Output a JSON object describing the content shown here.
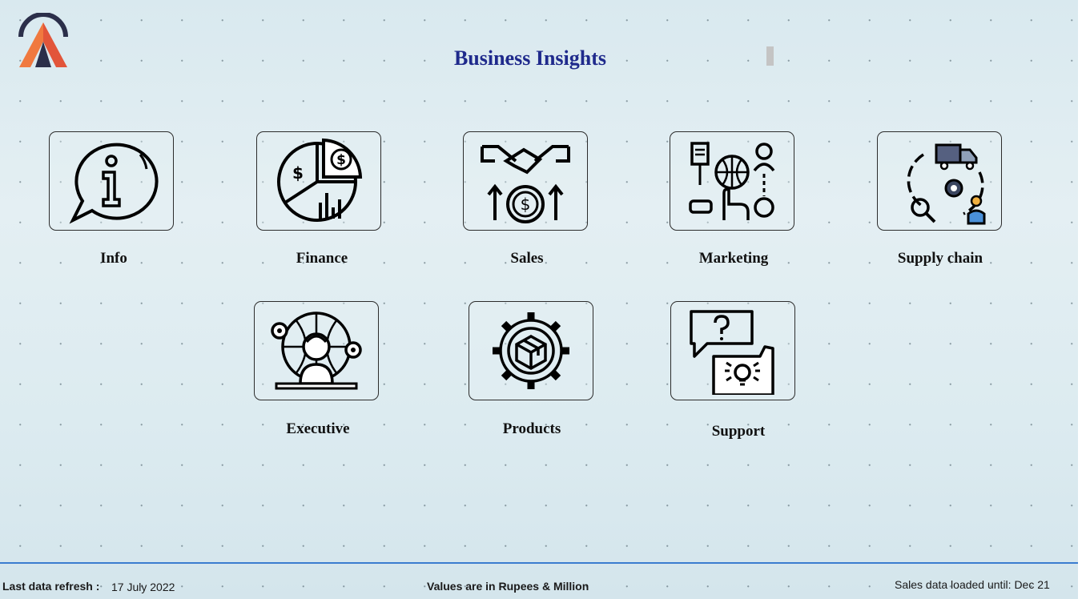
{
  "title": "Business Insights",
  "tiles": [
    {
      "label": "Info",
      "icon": "info-speech-bubble-icon"
    },
    {
      "label": "Finance",
      "icon": "finance-pie-chart-icon"
    },
    {
      "label": "Sales",
      "icon": "handshake-coin-icon"
    },
    {
      "label": "Marketing",
      "icon": "marketing-globe-icon"
    },
    {
      "label": "Supply chain",
      "icon": "supply-chain-truck-icon"
    },
    {
      "label": "Executive",
      "icon": "executive-person-globe-icon"
    },
    {
      "label": "Products",
      "icon": "product-box-gear-icon"
    },
    {
      "label": "Support",
      "icon": "support-chat-bubbles-icon"
    }
  ],
  "footer": {
    "refresh_label": "Last data refresh :",
    "refresh_date": "17 July 2022",
    "units_note": "Values are in Rupees & Million",
    "sales_loaded": "Sales data loaded until: Dec 21"
  },
  "colors": {
    "title": "#1f2a8c",
    "footer_line": "#3a7ccf",
    "logo_orange": "#f26a3c",
    "logo_dark": "#2b2f4a"
  }
}
